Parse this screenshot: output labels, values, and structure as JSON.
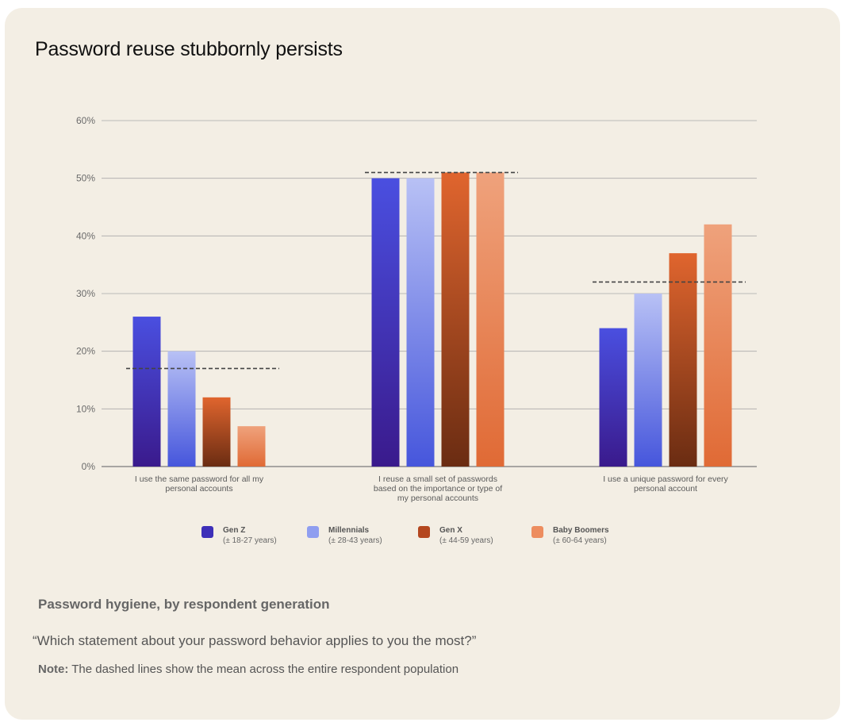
{
  "page": {
    "title": "Password reuse stubbornly persists",
    "subtitle": "Password hygiene, by respondent generation",
    "question": "“Which statement about your password behavior applies to you the most?”",
    "note_label": "Note:",
    "note_text": " The dashed lines show the mean across the entire respondent population"
  },
  "chart_data": {
    "type": "bar",
    "title": "Password reuse stubbornly persists",
    "categories": [
      [
        "I use the same password for all my",
        "personal accounts"
      ],
      [
        "I reuse a small set of passwords",
        "based on the importance or type of",
        "my personal accounts"
      ],
      [
        "I use a unique password for every",
        "personal account"
      ]
    ],
    "series": [
      {
        "name": "Gen Z",
        "range": "(± 18-27 years)",
        "values": [
          26,
          50,
          24
        ],
        "color_top": "#4a4fe0",
        "color_bottom": "#3a1a8c",
        "swatch": "#3d2fb8"
      },
      {
        "name": "Millennials",
        "range": "(± 28-43 years)",
        "values": [
          20,
          50,
          30
        ],
        "color_top": "#b8c1f5",
        "color_bottom": "#4656dc",
        "swatch": "#8f9ef0"
      },
      {
        "name": "Gen X",
        "range": "(± 44-59 years)",
        "values": [
          12,
          51,
          37
        ],
        "color_top": "#e0652e",
        "color_bottom": "#6a2c12",
        "swatch": "#b4471f"
      },
      {
        "name": "Baby Boomers",
        "range": "(± 60-64 years)",
        "values": [
          7,
          51,
          42
        ],
        "color_top": "#efa27c",
        "color_bottom": "#e06a35",
        "swatch": "#ed8d5f"
      }
    ],
    "means": [
      17,
      51,
      32
    ],
    "yticks": [
      "0%",
      "10%",
      "20%",
      "30%",
      "40%",
      "50%",
      "60%"
    ],
    "ylim": [
      0,
      60
    ],
    "grid": true,
    "legend_position": "bottom"
  }
}
